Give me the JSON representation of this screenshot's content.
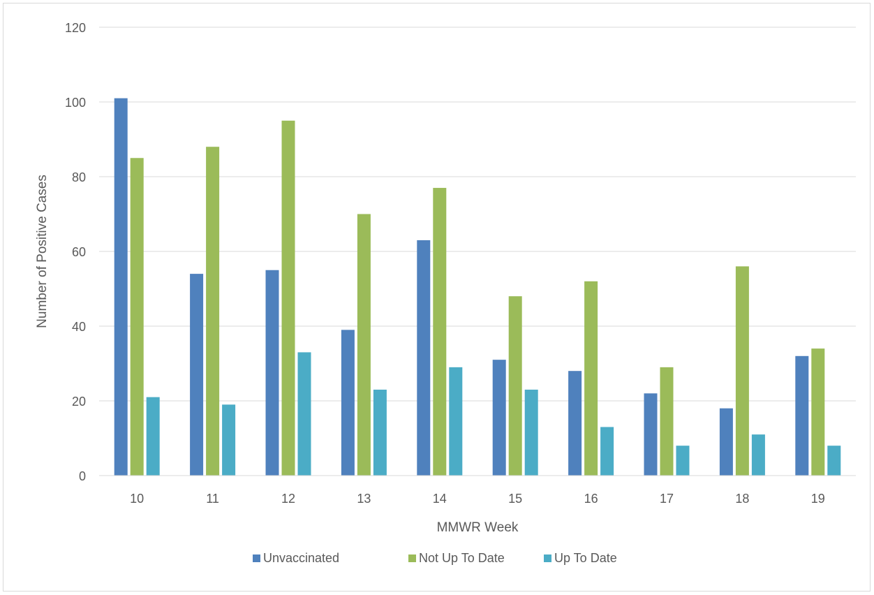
{
  "chart_data": {
    "type": "bar",
    "title": "",
    "xlabel": "MMWR Week",
    "ylabel": "Number of Positive Cases",
    "categories": [
      "10",
      "11",
      "12",
      "13",
      "14",
      "15",
      "16",
      "17",
      "18",
      "19"
    ],
    "ylim": [
      0,
      120
    ],
    "yticks": [
      0,
      20,
      40,
      60,
      80,
      100,
      120
    ],
    "grid": "horizontal",
    "legend_position": "bottom",
    "series": [
      {
        "name": "Unvaccinated",
        "color": "#4f81bd",
        "values": [
          101,
          54,
          55,
          39,
          63,
          31,
          28,
          22,
          18,
          32
        ]
      },
      {
        "name": "Not Up To Date",
        "color": "#9bbb59",
        "values": [
          85,
          88,
          95,
          70,
          77,
          48,
          52,
          29,
          56,
          34
        ]
      },
      {
        "name": "Up To Date",
        "color": "#4bacc6",
        "values": [
          21,
          19,
          33,
          23,
          29,
          23,
          13,
          8,
          11,
          8
        ]
      }
    ]
  }
}
